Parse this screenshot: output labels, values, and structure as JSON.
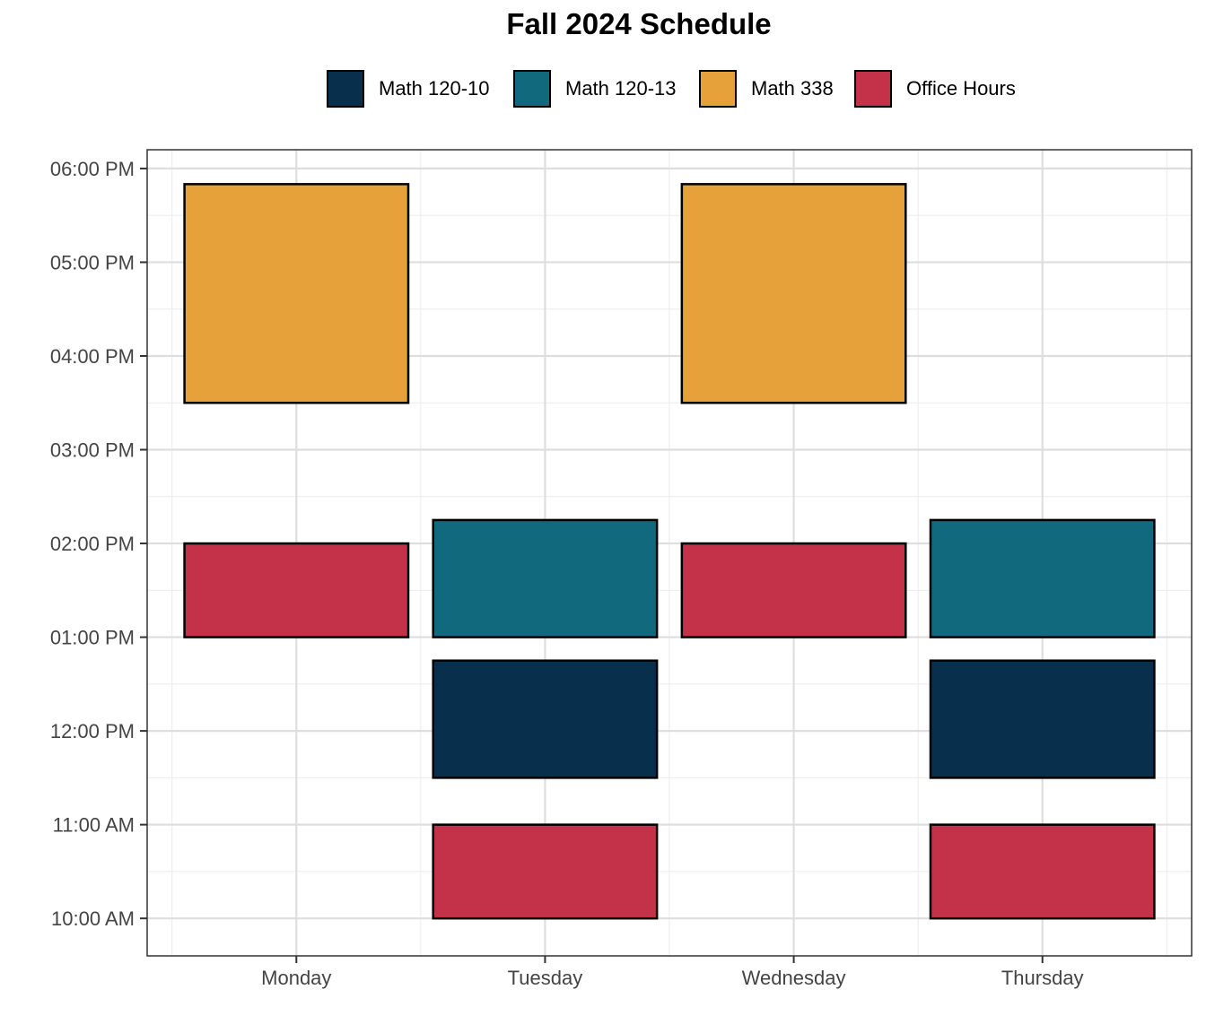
{
  "chart_data": {
    "type": "bar",
    "title": "Fall 2024 Schedule",
    "xlabel": "",
    "ylabel": "",
    "categories": [
      "Monday",
      "Tuesday",
      "Wednesday",
      "Thursday"
    ],
    "y_ticks": [
      "10:00 AM",
      "11:00 AM",
      "12:00 PM",
      "01:00 PM",
      "02:00 PM",
      "03:00 PM",
      "04:00 PM",
      "05:00 PM",
      "06:00 PM"
    ],
    "y_tick_hours": [
      10,
      11,
      12,
      13,
      14,
      15,
      16,
      17,
      18
    ],
    "ylim": [
      9.6,
      18.2
    ],
    "grid": true,
    "legend_position": "top",
    "series": [
      {
        "name": "Math 120-10",
        "color": "#08304c"
      },
      {
        "name": "Math 120-13",
        "color": "#10697c"
      },
      {
        "name": "Math 338",
        "color": "#e6a13a"
      },
      {
        "name": "Office Hours",
        "color": "#c4324a"
      }
    ],
    "events": [
      {
        "day": "Monday",
        "series": "Math 338",
        "start": "03:30 PM",
        "end": "05:50 PM",
        "start_hour": 15.5,
        "end_hour": 17.833
      },
      {
        "day": "Monday",
        "series": "Office Hours",
        "start": "01:00 PM",
        "end": "02:00 PM",
        "start_hour": 13.0,
        "end_hour": 14.0
      },
      {
        "day": "Tuesday",
        "series": "Math 120-13",
        "start": "01:00 PM",
        "end": "02:15 PM",
        "start_hour": 13.0,
        "end_hour": 14.25
      },
      {
        "day": "Tuesday",
        "series": "Math 120-10",
        "start": "11:30 AM",
        "end": "12:45 PM",
        "start_hour": 11.5,
        "end_hour": 12.75
      },
      {
        "day": "Tuesday",
        "series": "Office Hours",
        "start": "10:00 AM",
        "end": "11:00 AM",
        "start_hour": 10.0,
        "end_hour": 11.0
      },
      {
        "day": "Wednesday",
        "series": "Math 338",
        "start": "03:30 PM",
        "end": "05:50 PM",
        "start_hour": 15.5,
        "end_hour": 17.833
      },
      {
        "day": "Wednesday",
        "series": "Office Hours",
        "start": "01:00 PM",
        "end": "02:00 PM",
        "start_hour": 13.0,
        "end_hour": 14.0
      },
      {
        "day": "Thursday",
        "series": "Math 120-13",
        "start": "01:00 PM",
        "end": "02:15 PM",
        "start_hour": 13.0,
        "end_hour": 14.25
      },
      {
        "day": "Thursday",
        "series": "Math 120-10",
        "start": "11:30 AM",
        "end": "12:45 PM",
        "start_hour": 11.5,
        "end_hour": 12.75
      },
      {
        "day": "Thursday",
        "series": "Office Hours",
        "start": "10:00 AM",
        "end": "11:00 AM",
        "start_hour": 10.0,
        "end_hour": 11.0
      }
    ]
  }
}
